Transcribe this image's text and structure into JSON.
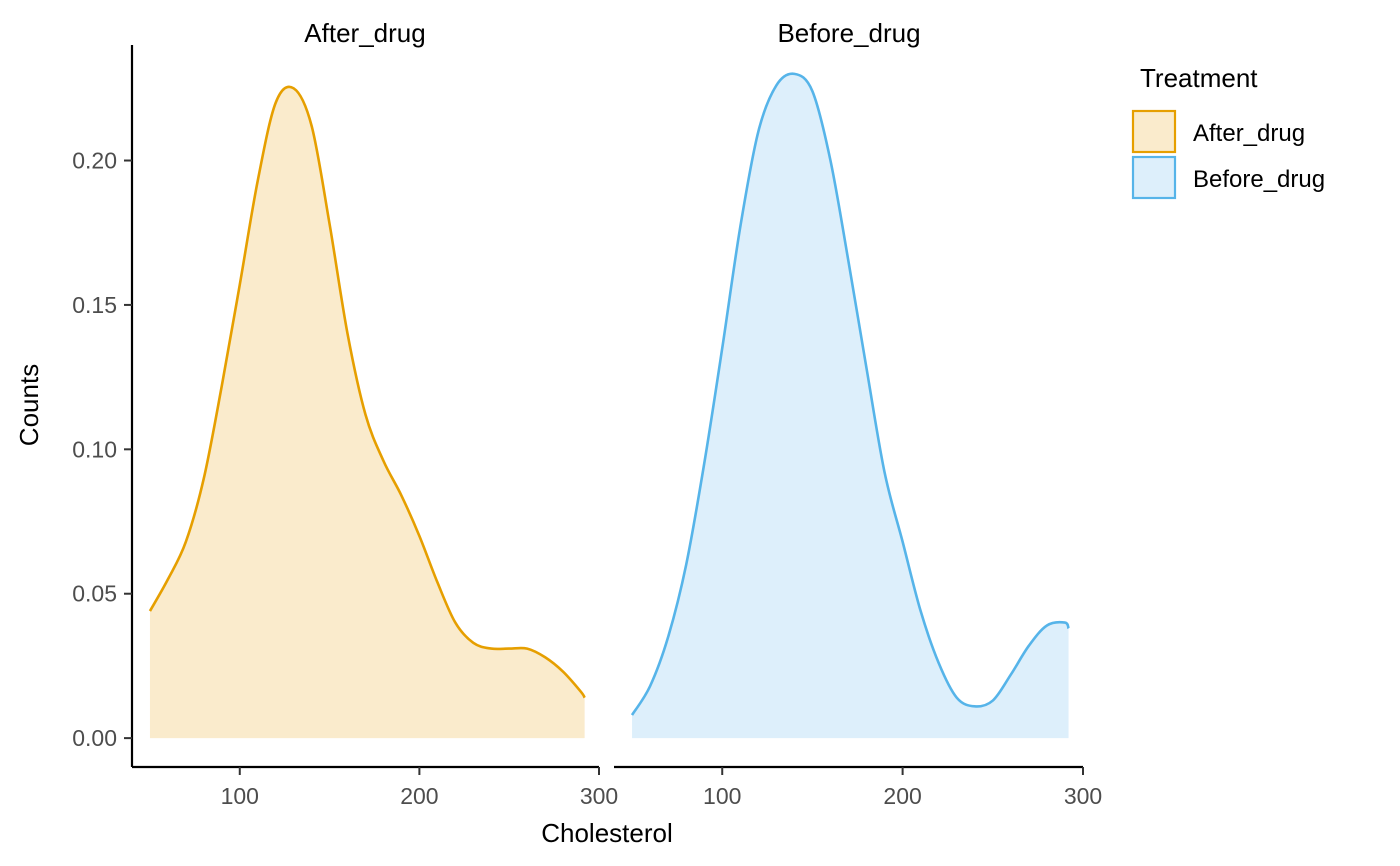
{
  "chart_data": {
    "type": "area",
    "subtype": "faceted density",
    "xlabel": "Cholesterol",
    "ylabel": "Counts",
    "xlim": [
      40,
      300
    ],
    "ylim": [
      -0.01,
      0.24
    ],
    "x_ticks": [
      100,
      200,
      300
    ],
    "x_tick_labels": [
      "100",
      "200",
      "300"
    ],
    "y_ticks": [
      0.0,
      0.05,
      0.1,
      0.15,
      0.2
    ],
    "y_tick_labels": [
      "0.00",
      "0.05",
      "0.10",
      "0.15",
      "0.20"
    ],
    "grid": false,
    "legend": {
      "title": "Treatment",
      "position": "right",
      "entries": [
        {
          "label": "After_drug",
          "stroke": "#E69F00",
          "fill": "#FAEBCC"
        },
        {
          "label": "Before_drug",
          "stroke": "#56B4E9",
          "fill": "#DDEFFB"
        }
      ]
    },
    "facets": [
      {
        "title": "After_drug",
        "series": "After_drug",
        "x": [
          50,
          60,
          70,
          80,
          90,
          100,
          110,
          120,
          130,
          140,
          150,
          160,
          170,
          180,
          190,
          200,
          210,
          220,
          230,
          240,
          250,
          260,
          270,
          280,
          290,
          292
        ],
        "y": [
          0.044,
          0.055,
          0.068,
          0.09,
          0.122,
          0.157,
          0.193,
          0.22,
          0.225,
          0.212,
          0.178,
          0.14,
          0.112,
          0.096,
          0.084,
          0.07,
          0.054,
          0.04,
          0.033,
          0.031,
          0.031,
          0.031,
          0.028,
          0.023,
          0.016,
          0.014
        ]
      },
      {
        "title": "Before_drug",
        "series": "Before_drug",
        "x": [
          50,
          60,
          70,
          80,
          90,
          100,
          110,
          120,
          130,
          140,
          150,
          160,
          170,
          180,
          190,
          200,
          210,
          220,
          230,
          240,
          250,
          260,
          270,
          280,
          290,
          292
        ],
        "y": [
          0.008,
          0.018,
          0.035,
          0.06,
          0.095,
          0.135,
          0.177,
          0.21,
          0.226,
          0.23,
          0.224,
          0.2,
          0.165,
          0.128,
          0.092,
          0.068,
          0.044,
          0.026,
          0.014,
          0.011,
          0.013,
          0.022,
          0.032,
          0.039,
          0.04,
          0.038
        ]
      }
    ]
  }
}
